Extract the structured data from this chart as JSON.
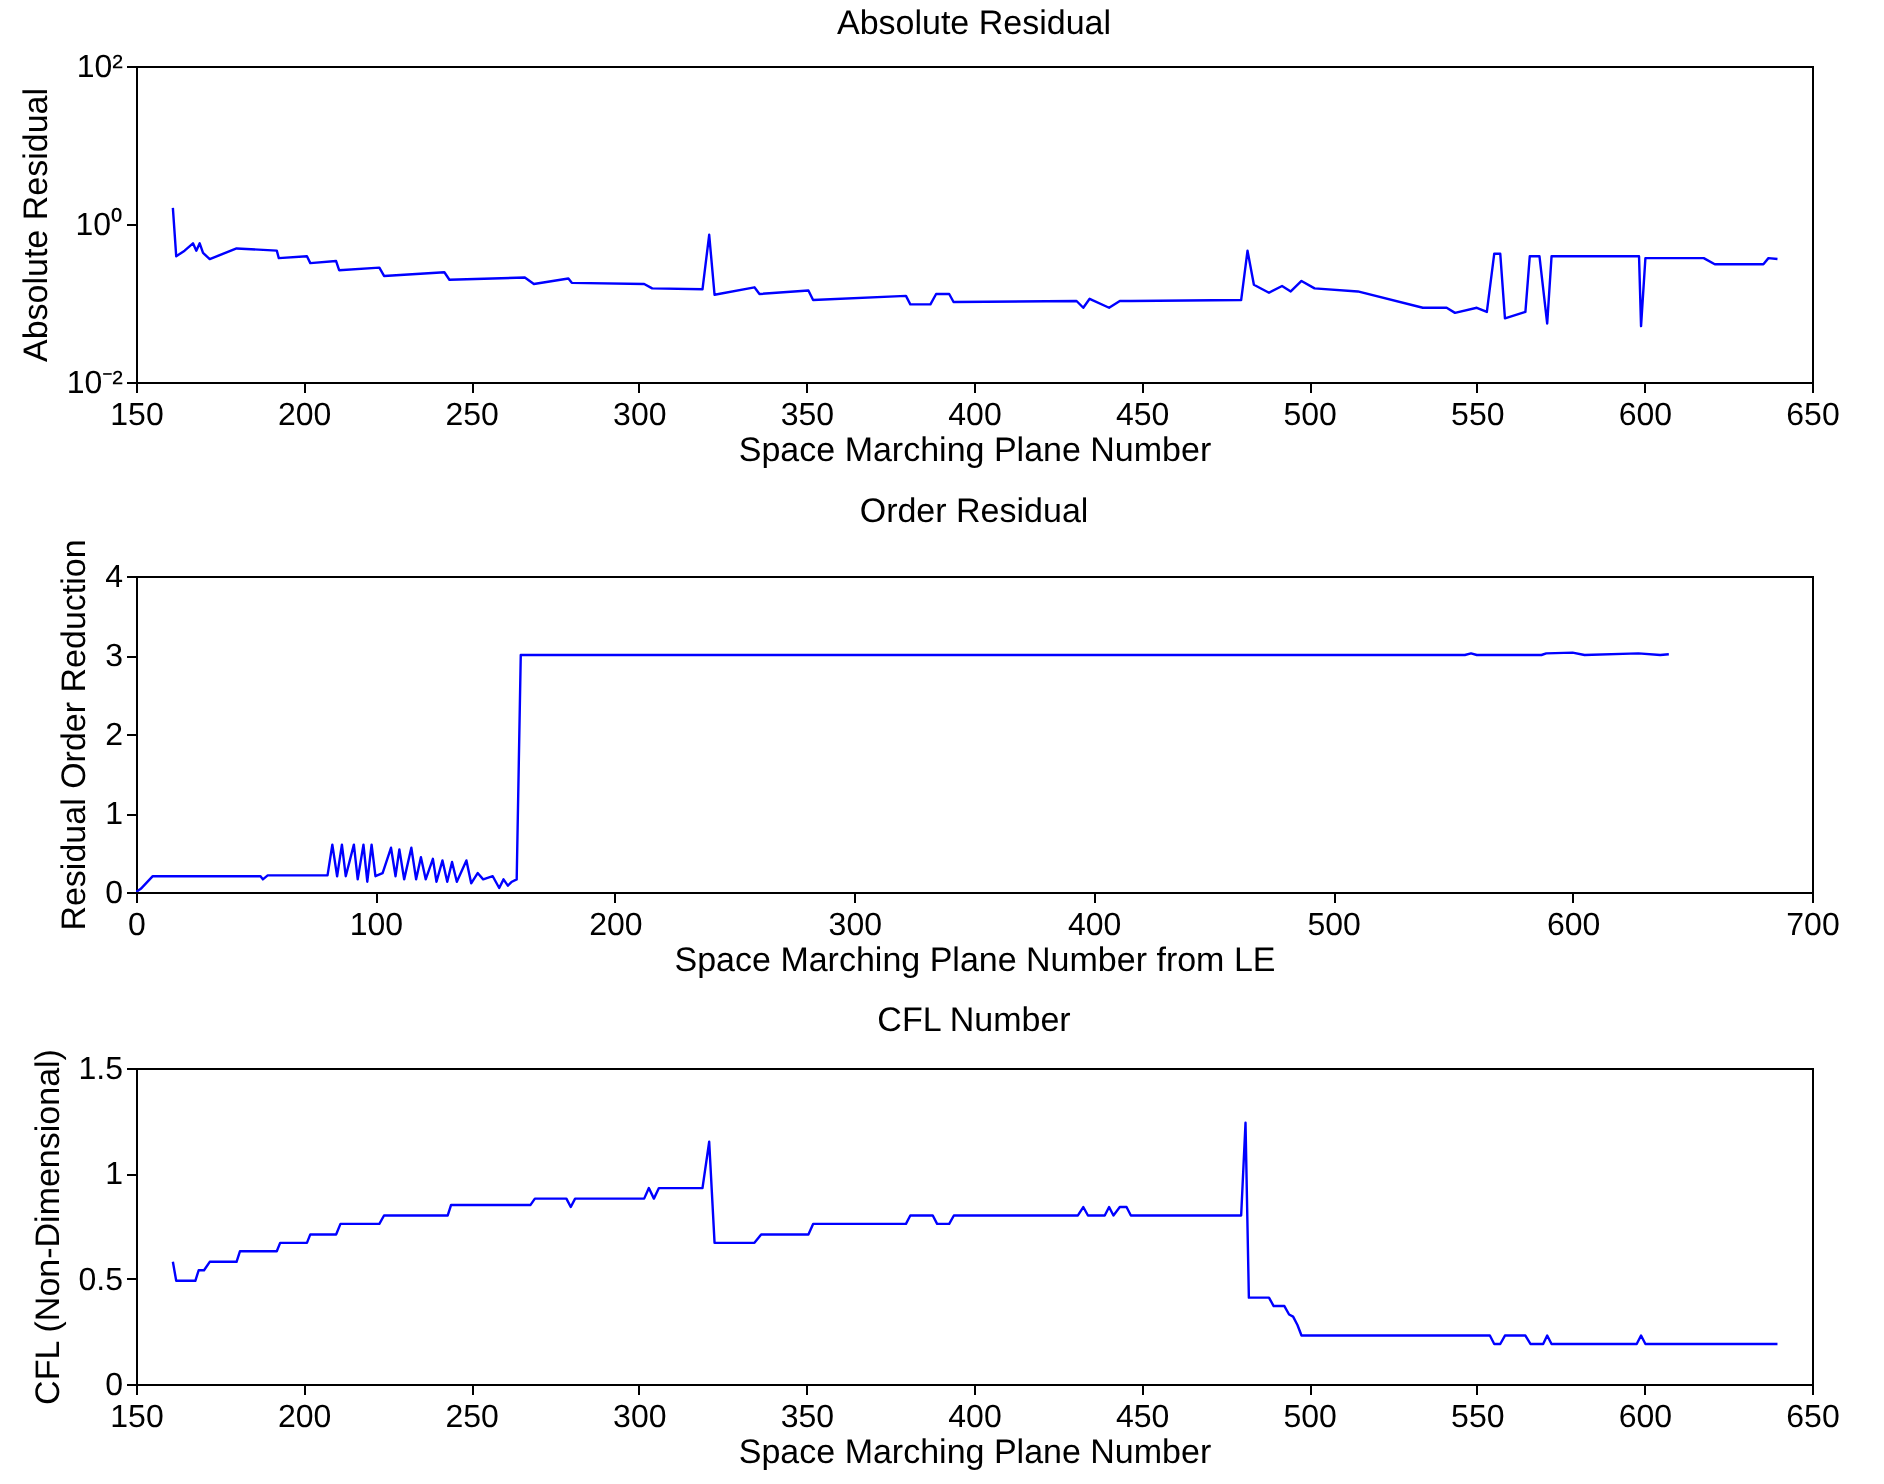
{
  "chart_data": [
    {
      "type": "line",
      "title": "Absolute Residual",
      "xlabel": "Space Marching Plane Number",
      "ylabel": "Absolute Residual",
      "log": "y",
      "xlim": [
        150,
        650
      ],
      "xticks": [
        150,
        200,
        250,
        300,
        350,
        400,
        450,
        500,
        550,
        600,
        650
      ],
      "ylim": [
        0.01,
        100
      ],
      "yticks": [
        {
          "value": 0.01,
          "label": "10⁻²"
        },
        {
          "value": 1,
          "label": "10⁰"
        },
        {
          "value": 100,
          "label": "10²"
        }
      ],
      "x": [
        161,
        162,
        164.5,
        167,
        168,
        169,
        170,
        172,
        180,
        192,
        192.6,
        201,
        202,
        209.7,
        210.6,
        222.6,
        224,
        242,
        243.5,
        266,
        268.7,
        279,
        280,
        301.6,
        304,
        319,
        321,
        322.6,
        334.5,
        336,
        350.6,
        352,
        379.7,
        381,
        387,
        388.7,
        392.6,
        393.9,
        430.6,
        432.6,
        434.5,
        440.3,
        443.5,
        446.8,
        479.7,
        481.6,
        483.5,
        488,
        491.9,
        494.5,
        497.7,
        501.6,
        514.5,
        533.9,
        541,
        543.5,
        550,
        553,
        555.2,
        557,
        558.4,
        564.5,
        565.8,
        568.7,
        571,
        572.3,
        575.8,
        598.4,
        599,
        600.3,
        617.7,
        621,
        635.5,
        637,
        639.7
      ],
      "series": [
        {
          "color": "#0000ff",
          "values": [
            1.6,
            0.39,
            0.46,
            0.57,
            0.46,
            0.57,
            0.43,
            0.36,
            0.49,
            0.46,
            0.37,
            0.39,
            0.32,
            0.34,
            0.26,
            0.28,
            0.22,
            0.245,
            0.197,
            0.21,
            0.174,
            0.204,
            0.18,
            0.174,
            0.153,
            0.149,
            0.73,
            0.127,
            0.158,
            0.13,
            0.144,
            0.109,
            0.123,
            0.096,
            0.096,
            0.13,
            0.13,
            0.103,
            0.106,
            0.087,
            0.113,
            0.087,
            0.106,
            0.106,
            0.109,
            0.46,
            0.17,
            0.135,
            0.164,
            0.14,
            0.19,
            0.153,
            0.14,
            0.087,
            0.087,
            0.075,
            0.087,
            0.077,
            0.42,
            0.42,
            0.064,
            0.077,
            0.39,
            0.39,
            0.055,
            0.39,
            0.39,
            0.39,
            0.051,
            0.37,
            0.37,
            0.31,
            0.31,
            0.37,
            0.36
          ]
        }
      ]
    },
    {
      "type": "line",
      "title": "Order Residual",
      "xlabel": "Space Marching Plane Number from LE",
      "ylabel": "Residual Order Reduction",
      "xlim": [
        0,
        700
      ],
      "xticks": [
        0,
        100,
        200,
        300,
        400,
        500,
        600,
        700
      ],
      "ylim": [
        0,
        4
      ],
      "yticks": [
        0,
        1,
        2,
        3,
        4
      ],
      "x": [
        0,
        2,
        7,
        52,
        53,
        55,
        80,
        82,
        84,
        86,
        87.6,
        91,
        92.6,
        95,
        96.6,
        98.4,
        100,
        103,
        106.5,
        108.4,
        110,
        112,
        115,
        117,
        119,
        121,
        124,
        125.5,
        128,
        130,
        132,
        134,
        138,
        140,
        142.7,
        145,
        149,
        151.7,
        153.5,
        155.3,
        157,
        159,
        160.7,
        555,
        557.6,
        560,
        587,
        589,
        600,
        605,
        627.5,
        636.6,
        640.2
      ],
      "series": [
        {
          "color": "#0000ff",
          "values": [
            0,
            0.04,
            0.2,
            0.2,
            0.16,
            0.21,
            0.21,
            0.6,
            0.2,
            0.6,
            0.2,
            0.6,
            0.16,
            0.6,
            0.13,
            0.6,
            0.2,
            0.24,
            0.56,
            0.2,
            0.54,
            0.16,
            0.56,
            0.16,
            0.44,
            0.16,
            0.42,
            0.13,
            0.4,
            0.13,
            0.38,
            0.13,
            0.4,
            0.11,
            0.24,
            0.16,
            0.2,
            0.05,
            0.16,
            0.08,
            0.13,
            0.16,
            3,
            3,
            3.02,
            3,
            3,
            3.02,
            3.03,
            3,
            3.02,
            3,
            3.01
          ]
        }
      ]
    },
    {
      "type": "line",
      "title": "CFL Number",
      "xlabel": "Space Marching Plane Number",
      "ylabel": "CFL (Non-Dimensional)",
      "xlim": [
        150,
        650
      ],
      "xticks": [
        150,
        200,
        250,
        300,
        350,
        400,
        450,
        500,
        550,
        600,
        650
      ],
      "ylim": [
        0,
        1.5
      ],
      "yticks": [
        0,
        0.5,
        1,
        1.5
      ],
      "x": [
        161,
        162,
        167.7,
        168.7,
        170.3,
        172,
        180,
        181,
        192,
        193,
        201,
        202,
        209.7,
        211,
        222.6,
        224,
        243,
        244,
        267.7,
        269,
        278.4,
        279.7,
        281,
        301.6,
        303,
        304.5,
        306,
        319,
        321,
        322.6,
        334.5,
        336.5,
        350.6,
        352,
        379.7,
        381,
        387.7,
        389,
        392.6,
        394,
        431,
        432.6,
        434,
        439,
        440.3,
        441.6,
        443.5,
        445.5,
        446.8,
        448.7,
        479.7,
        481,
        482,
        488,
        489.4,
        492.6,
        494,
        495.2,
        496.5,
        497.7,
        553.9,
        555.2,
        557,
        558.4,
        564.5,
        566,
        569.8,
        571,
        572.3,
        597.7,
        599,
        600.3,
        639.7
      ],
      "series": [
        {
          "color": "#0000ff",
          "values": [
            0.58,
            0.49,
            0.49,
            0.54,
            0.54,
            0.58,
            0.58,
            0.63,
            0.63,
            0.67,
            0.67,
            0.71,
            0.71,
            0.76,
            0.76,
            0.8,
            0.8,
            0.85,
            0.85,
            0.88,
            0.88,
            0.84,
            0.88,
            0.88,
            0.93,
            0.88,
            0.93,
            0.93,
            1.15,
            0.67,
            0.67,
            0.71,
            0.71,
            0.76,
            0.76,
            0.8,
            0.8,
            0.76,
            0.76,
            0.8,
            0.8,
            0.84,
            0.8,
            0.8,
            0.84,
            0.8,
            0.84,
            0.84,
            0.8,
            0.8,
            0.8,
            1.24,
            0.41,
            0.41,
            0.37,
            0.37,
            0.33,
            0.32,
            0.28,
            0.23,
            0.23,
            0.19,
            0.19,
            0.23,
            0.23,
            0.19,
            0.19,
            0.23,
            0.19,
            0.19,
            0.23,
            0.19,
            0.19
          ]
        }
      ]
    }
  ]
}
